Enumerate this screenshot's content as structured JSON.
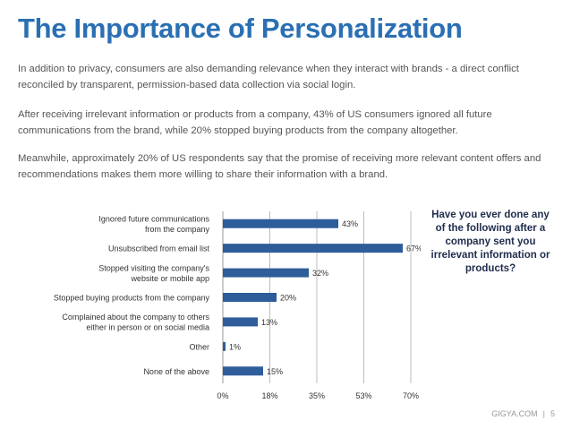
{
  "title": "The Importance of Personalization",
  "paragraphs": [
    "In addition to privacy, consumers are also demanding relevance when they interact with brands - a direct conflict reconciled by transparent, permission-based data collection via social login.",
    "After receiving irrelevant information or products from a company, 43% of US consumers ignored all future communications from the brand, while 20% stopped buying products from the company altogether.",
    "Meanwhile, approximately 20% of US respondents say that the promise of receiving more relevant content offers and recommendations makes them more willing to share their information with a brand."
  ],
  "question": "Have you ever done any of the following after a company sent you irrelevant information or products?",
  "footer": {
    "source": "GIGYA.COM",
    "separator": "|",
    "page": "5"
  },
  "colors": {
    "title": "#2a6fb3",
    "bar": "#2e5d9a",
    "question": "#1f2d4d"
  },
  "chart_data": {
    "type": "bar",
    "orientation": "horizontal",
    "categories": [
      [
        "Ignored future communications",
        "from the company"
      ],
      [
        "Unsubscribed from email list"
      ],
      [
        "Stopped visiting the company's",
        "website or mobile app"
      ],
      [
        "Stopped buying products from the company"
      ],
      [
        "Complained about the company to others",
        "either in person or on social media"
      ],
      [
        "Other"
      ],
      [
        "None of the above"
      ]
    ],
    "values": [
      43,
      67,
      32,
      20,
      13,
      1,
      15
    ],
    "value_labels": [
      "43%",
      "67%",
      "32%",
      "20%",
      "13%",
      "1%",
      "15%"
    ],
    "xlim": [
      0,
      70
    ],
    "ticks": [
      0,
      17.5,
      35,
      52.5,
      70
    ],
    "tick_labels": [
      "0%",
      "18%",
      "35%",
      "53%",
      "70%"
    ],
    "grid": true
  }
}
